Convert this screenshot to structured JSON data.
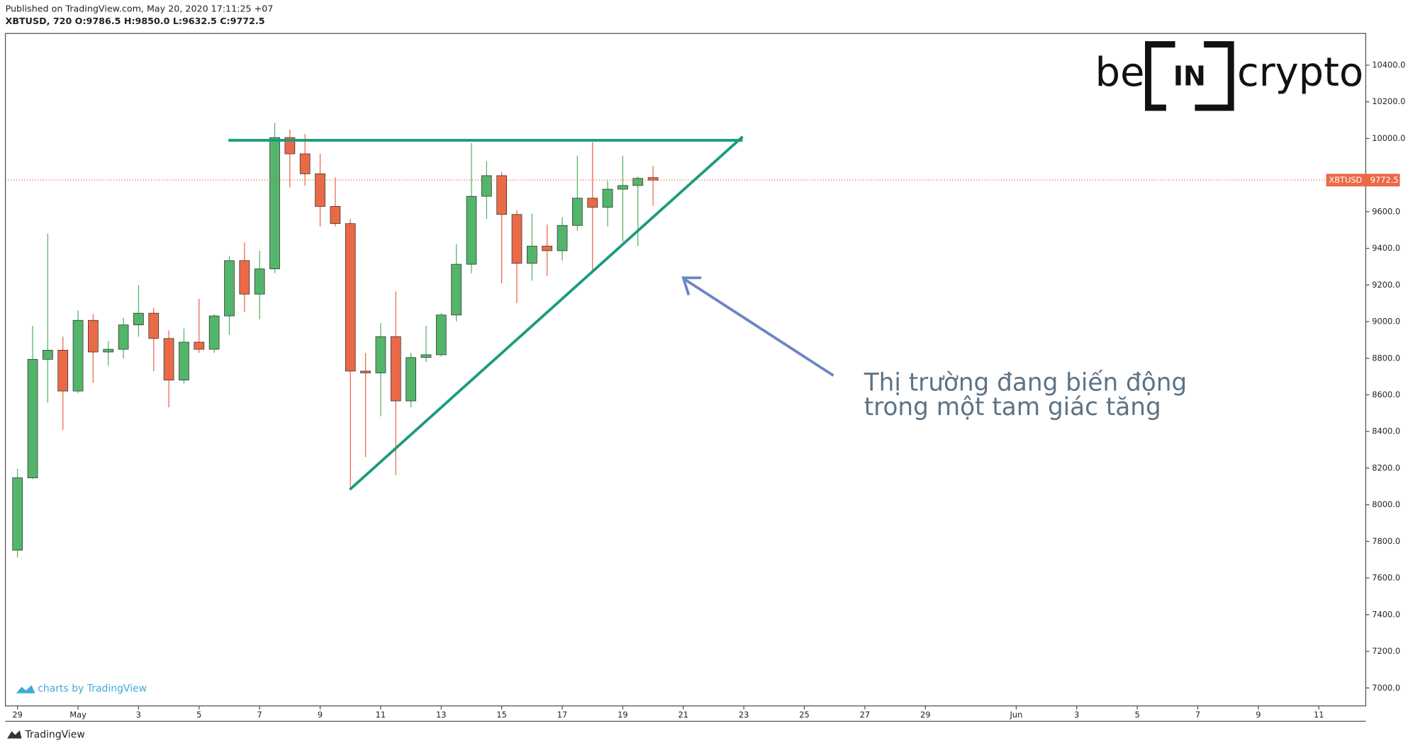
{
  "header": {
    "published": "Published on TradingView.com, May 20, 2020 17:11:25 +07",
    "symbol": "XBTUSD, 720 O:9786.5 H:9850.0 L:9632.5 C:9772.5"
  },
  "chart_data": {
    "type": "candlestick",
    "categories": [
      null,
      null,
      null,
      null,
      null,
      null,
      null,
      null,
      null,
      null,
      null,
      null,
      null,
      null,
      null,
      null,
      null,
      null,
      null,
      null,
      null,
      null,
      null,
      null,
      null,
      null,
      null,
      null,
      null,
      null,
      null,
      null,
      null,
      null,
      null,
      null,
      null,
      null,
      null,
      null,
      null,
      null,
      null
    ],
    "series": {
      "open": [
        7752,
        8147,
        8794,
        8844,
        8621,
        9007,
        8834,
        8849,
        8982,
        9046,
        8908,
        8681,
        8888,
        8849,
        9031,
        9333,
        9150,
        9288,
        10005,
        9916,
        9807,
        9629,
        9535,
        8730,
        8720,
        8918,
        8567,
        8804,
        8819,
        9036,
        9313,
        9684,
        9797,
        9585,
        9318,
        9412,
        9387,
        9525,
        9674,
        9624,
        9723,
        9743,
        9786.5
      ],
      "close": [
        8147,
        8794,
        8844,
        8621,
        9007,
        8834,
        8849,
        8982,
        9046,
        8908,
        8681,
        8888,
        8849,
        9031,
        9333,
        9150,
        9288,
        10005,
        9916,
        9807,
        9629,
        9535,
        8730,
        8720,
        8918,
        8567,
        8804,
        8819,
        9036,
        9313,
        9684,
        9797,
        9585,
        9318,
        9412,
        9387,
        9525,
        9674,
        9624,
        9723,
        9743,
        9782,
        9772.5
      ],
      "high": [
        8196,
        8977,
        9481,
        8918,
        9061,
        9041,
        8893,
        9021,
        9199,
        9076,
        8952,
        8962,
        9125,
        9041,
        9357,
        9432,
        9387,
        10084,
        10049,
        10025,
        9916,
        9787,
        9560,
        8829,
        8992,
        9165,
        8829,
        8977,
        9046,
        9422,
        9975,
        9876,
        9817,
        9609,
        9590,
        9530,
        9570,
        9906,
        9980,
        9768,
        9906,
        9792,
        9850
      ],
      "low": [
        7712,
        8140,
        8557,
        8409,
        8610,
        8666,
        8760,
        8799,
        8918,
        8730,
        8532,
        8661,
        8829,
        8829,
        8928,
        9051,
        9012,
        9264,
        9733,
        9743,
        9520,
        9520,
        8098,
        8260,
        8483,
        8162,
        8532,
        8779,
        8809,
        9002,
        9264,
        9560,
        9209,
        9101,
        9224,
        9249,
        9333,
        9496,
        9283,
        9520,
        9436,
        9412,
        9632.5
      ]
    },
    "up_color": "#53b56b",
    "down_color": "#ea6a47",
    "xlim": [
      -0.8,
      89.1
    ],
    "xticks": [
      {
        "value": 0,
        "label": "29"
      },
      {
        "value": 4,
        "label": "May"
      },
      {
        "value": 8,
        "label": "3"
      },
      {
        "value": 12,
        "label": "5"
      },
      {
        "value": 16,
        "label": "7"
      },
      {
        "value": 20,
        "label": "9"
      },
      {
        "value": 24,
        "label": "11"
      },
      {
        "value": 28,
        "label": "13"
      },
      {
        "value": 32,
        "label": "15"
      },
      {
        "value": 36,
        "label": "17"
      },
      {
        "value": 40,
        "label": "19"
      },
      {
        "value": 44,
        "label": "21"
      },
      {
        "value": 48,
        "label": "23"
      },
      {
        "value": 52,
        "label": "25"
      },
      {
        "value": 56,
        "label": "27"
      },
      {
        "value": 60,
        "label": "29"
      },
      {
        "value": 66,
        "label": "Jun"
      },
      {
        "value": 70,
        "label": "3"
      },
      {
        "value": 74,
        "label": "5"
      },
      {
        "value": 78,
        "label": "7"
      },
      {
        "value": 82,
        "label": "9"
      },
      {
        "value": 86,
        "label": "11"
      }
    ],
    "ylim": [
      6902,
      10573
    ],
    "yticks": [
      {
        "value": 7000,
        "label": "7000.0"
      },
      {
        "value": 7200,
        "label": "7200.0"
      },
      {
        "value": 7400,
        "label": "7400.0"
      },
      {
        "value": 7600,
        "label": "7600.0"
      },
      {
        "value": 7800,
        "label": "7800.0"
      },
      {
        "value": 8000,
        "label": "8000.0"
      },
      {
        "value": 8200,
        "label": "8200.0"
      },
      {
        "value": 8400,
        "label": "8400.0"
      },
      {
        "value": 8600,
        "label": "8600.0"
      },
      {
        "value": 8800,
        "label": "8800.0"
      },
      {
        "value": 9000,
        "label": "9000.0"
      },
      {
        "value": 9200,
        "label": "9200.0"
      },
      {
        "value": 9400,
        "label": "9400.0"
      },
      {
        "value": 9600,
        "label": "9600.0"
      },
      {
        "value": 10000,
        "label": "10000.0"
      },
      {
        "value": 10200,
        "label": "10200.0"
      },
      {
        "value": 10400,
        "label": "10400.0"
      }
    ],
    "last_price": {
      "name": "XBTUSD",
      "value": 9772.5
    },
    "annotation": [
      "Thị trường đang biến động",
      "trong một tam giác tăng"
    ]
  },
  "logo": {
    "left": "be",
    "middle": "IN",
    "right": "crypto"
  },
  "watermark": "charts by TradingView",
  "footer": "TradingView"
}
